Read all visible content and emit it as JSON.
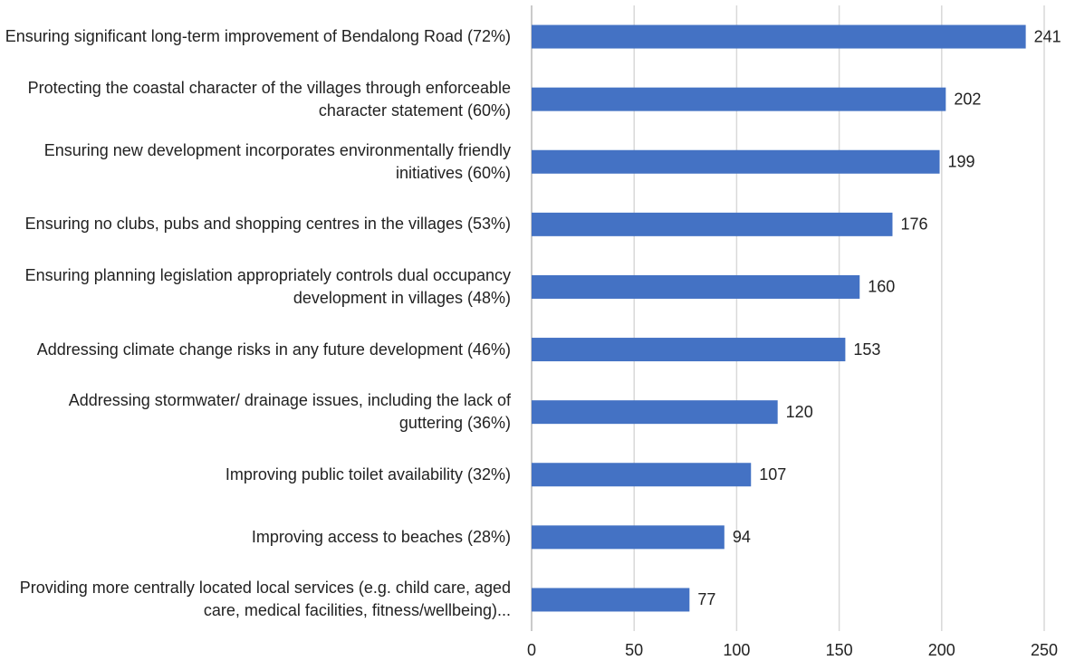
{
  "chart_data": {
    "type": "bar",
    "orientation": "horizontal",
    "categories": [
      "Ensuring significant long-term improvement of Bendalong Road (72%)",
      "Protecting the coastal character of the villages through enforceable character statement (60%)",
      "Ensuring new development incorporates environmentally friendly initiatives (60%)",
      "Ensuring no clubs, pubs and shopping centres in the villages (53%)",
      "Ensuring planning legislation appropriately controls dual occupancy development in villages (48%)",
      "Addressing climate change risks in any future development (46%)",
      "Addressing stormwater/ drainage issues, including the lack of guttering (36%)",
      "Improving public toilet availability (32%)",
      "Improving access to beaches (28%)",
      "Providing more centrally located local services (e.g. child care, aged care, medical facilities, fitness/wellbeing)..."
    ],
    "values": [
      241,
      202,
      199,
      176,
      160,
      153,
      120,
      107,
      94,
      77
    ],
    "color": "#4472c4",
    "xlim": [
      0,
      250
    ],
    "xticks": [
      0,
      50,
      100,
      150,
      200,
      250
    ],
    "grid": true
  }
}
